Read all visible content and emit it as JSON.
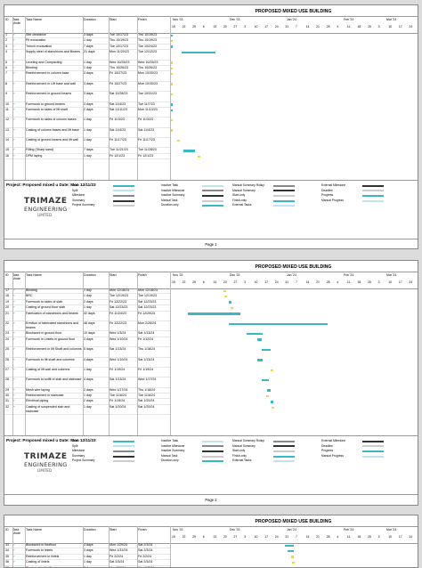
{
  "title": "PROPOSED MIXED USE BUILDING",
  "headers": {
    "id": "ID",
    "mode": "Task Mode",
    "name": "Task Name",
    "duration": "Duration",
    "start": "Start",
    "finish": "Finish"
  },
  "timeline_months": [
    "Nov '23",
    "Dec '23",
    "Jan '24",
    "Feb '24",
    "Mar '24"
  ],
  "timeline_days": [
    "15",
    "22",
    "29",
    "6",
    "13",
    "20",
    "27",
    "3",
    "10",
    "17",
    "24",
    "31",
    "7",
    "14",
    "21",
    "28",
    "4",
    "11",
    "18",
    "25",
    "3",
    "10",
    "17",
    "24"
  ],
  "pages": [
    {
      "tasks": [
        {
          "id": "1",
          "name": "Site clearance",
          "duration": "3 days",
          "start": "Tue 10/17/23",
          "finish": "Thu 10/19/23",
          "tall": false
        },
        {
          "id": "2",
          "name": "Pit excavation",
          "duration": "1 day",
          "start": "Thu 10/19/23",
          "finish": "Thu 10/19/23",
          "tall": false
        },
        {
          "id": "3",
          "name": "Trench excavation",
          "duration": "7 days",
          "start": "Tue 10/17/23",
          "finish": "Tue 10/24/23",
          "tall": false
        },
        {
          "id": "4",
          "name": "Supply steel of stanchions and Beams",
          "duration": "21 days",
          "start": "Mon 11/20/23",
          "finish": "Tue 12/12/23",
          "tall": true
        },
        {
          "id": "5",
          "name": "Leveling and Compacting",
          "duration": "1 day",
          "start": "Wed 10/25/23",
          "finish": "Wed 10/25/23",
          "tall": false
        },
        {
          "id": "6",
          "name": "Blinding",
          "duration": "1 day",
          "start": "Thu 10/26/23",
          "finish": "Thu 10/26/23",
          "tall": false
        },
        {
          "id": "7",
          "name": "Reinforcement in column base",
          "duration": "3 days",
          "start": "Fri 10/27/23",
          "finish": "Mon 10/30/23",
          "tall": true
        },
        {
          "id": "8",
          "name": "Reinforcement in Lift base and wall",
          "duration": "3 days",
          "start": "Fri 10/27/23",
          "finish": "Mon 10/30/23",
          "tall": true
        },
        {
          "id": "9",
          "name": "Reinforcement in ground beams",
          "duration": "3 days",
          "start": "Sat 10/28/23",
          "finish": "Tue 10/31/23",
          "tall": true
        },
        {
          "id": "10",
          "name": "Formwork to ground beams",
          "duration": "3 days",
          "start": "Sat 11/4/23",
          "finish": "Tue 11/7/23",
          "tall": false
        },
        {
          "id": "11",
          "name": "Formwork to sides of lift shaft",
          "duration": "2 days",
          "start": "Sat 11/11/23",
          "finish": "Mon 11/13/23",
          "tall": true
        },
        {
          "id": "12",
          "name": "Formwork to sides of column bases",
          "duration": "1 day",
          "start": "Fri 11/3/23",
          "finish": "Fri 11/3/23",
          "tall": true
        },
        {
          "id": "13",
          "name": "Casting of column bases and lift base",
          "duration": "1 day",
          "start": "Sat 11/4/23",
          "finish": "Sat 11/4/23",
          "tall": true
        },
        {
          "id": "14",
          "name": "Casting of ground beams and lift wall",
          "duration": "1 day",
          "start": "Fri 11/17/23",
          "finish": "Fri 11/17/23",
          "tall": true
        },
        {
          "id": "15",
          "name": "Filling (Sharp sand)",
          "duration": "7 days",
          "start": "Tue 11/21/23",
          "finish": "Tue 11/28/23",
          "tall": false
        },
        {
          "id": "16",
          "name": "DPM laying",
          "duration": "1 day",
          "start": "Fri 12/1/23",
          "finish": "Fri 12/1/23",
          "tall": false
        }
      ],
      "page_label": "Page 1"
    },
    {
      "tasks": [
        {
          "id": "17",
          "name": "Blinding",
          "duration": "1 day",
          "start": "Mon 12/18/23",
          "finish": "Mon 12/18/23",
          "tall": false
        },
        {
          "id": "18",
          "name": "BRC",
          "duration": "1 day",
          "start": "Tue 12/19/23",
          "finish": "Tue 12/19/23",
          "tall": false
        },
        {
          "id": "19",
          "name": "Formwork to sides of slab",
          "duration": "2 days",
          "start": "Fri 12/22/23",
          "finish": "Sat 12/23/23",
          "tall": false
        },
        {
          "id": "20",
          "name": "Casting of ground floor slab",
          "duration": "1 day",
          "start": "Sat 12/23/23",
          "finish": "Sat 12/23/23",
          "tall": false
        },
        {
          "id": "21",
          "name": "Fabrication of stanchions and beams",
          "duration": "32 days",
          "start": "Fri 11/24/23",
          "finish": "Fri 12/29/23",
          "tall": true
        },
        {
          "id": "22",
          "name": "Erection of fabricated stanchions and beams",
          "duration": "48 days",
          "start": "Fri 12/22/23",
          "finish": "Mon 2/26/24",
          "tall": true
        },
        {
          "id": "23",
          "name": "Blockwork in ground floor",
          "duration": "10 days",
          "start": "Wed 1/3/24",
          "finish": "Sat 1/13/24",
          "tall": false
        },
        {
          "id": "24",
          "name": "Formwork in Lintels in ground floor",
          "duration": "3 days",
          "start": "Wed 1/10/24",
          "finish": "Fri 1/12/24",
          "tall": true
        },
        {
          "id": "25",
          "name": "Reinforcement in lift Shaft and columns",
          "duration": "5 days",
          "start": "Sat 1/13/24",
          "finish": "Thu 1/18/24",
          "tall": true
        },
        {
          "id": "26",
          "name": "Formwork to lift shaft and columns",
          "duration": "4 days",
          "start": "Wed 1/10/24",
          "finish": "Sat 1/13/24",
          "tall": true
        },
        {
          "id": "27",
          "name": "Casting of lift wall and columns",
          "duration": "1 day",
          "start": "Fri 1/19/24",
          "finish": "Fri 1/19/24",
          "tall": true
        },
        {
          "id": "28",
          "name": "Formwork to soffit of slab and staircase",
          "duration": "4 days",
          "start": "Sat 1/13/24",
          "finish": "Wed 1/17/24",
          "tall": true
        },
        {
          "id": "29",
          "name": "Mesh wire laying",
          "duration": "2 days",
          "start": "Wed 1/17/24",
          "finish": "Thu 1/18/24",
          "tall": false
        },
        {
          "id": "30",
          "name": "Reinforcement in staircase",
          "duration": "1 day",
          "start": "Tue 1/16/24",
          "finish": "Tue 1/16/24",
          "tall": false
        },
        {
          "id": "31",
          "name": "Electrical piping",
          "duration": "2 days",
          "start": "Fri 1/19/24",
          "finish": "Sat 1/20/24",
          "tall": false
        },
        {
          "id": "32",
          "name": "Casting of suspended slab and staircase",
          "duration": "1 day",
          "start": "Sat 1/20/24",
          "finish": "Sat 1/20/24",
          "tall": true
        }
      ],
      "page_label": "Page 2"
    },
    {
      "tasks": [
        {
          "id": "33",
          "name": "Blockwork in firstfloor",
          "duration": "3 days",
          "start": "Mon 1/29/24",
          "finish": "Sat 2/3/24",
          "tall": false
        },
        {
          "id": "34",
          "name": "Formwork to lintels",
          "duration": "3 days",
          "start": "Wed 1/31/24",
          "finish": "Sat 2/3/24",
          "tall": false
        },
        {
          "id": "35",
          "name": "Reinforcement in lintels",
          "duration": "1 day",
          "start": "Fri 2/2/24",
          "finish": "Fri 2/2/24",
          "tall": false
        },
        {
          "id": "36",
          "name": "Casting of lintels",
          "duration": "1 day",
          "start": "Sat 2/3/24",
          "finish": "Sat 2/3/24",
          "tall": false
        },
        {
          "id": "37",
          "name": "Blockwork in firstfloor",
          "duration": "3 days",
          "start": "Mon 2/5/24",
          "finish": "Wed 2/7/24",
          "tall": false
        }
      ],
      "page_label": ""
    }
  ],
  "project_label": "Project: Proposed mixed u Date: Mon 12/11/23",
  "logo": {
    "line1": "TRIMAZE",
    "line2": "ENGINEERING",
    "line3": "LIMITED"
  },
  "legend": {
    "col1": [
      "Task",
      "Split",
      "Milestone",
      "Summary",
      "Project Summary"
    ],
    "col2": [
      "Inactive Task",
      "Inactive Milestone",
      "Inactive Summary",
      "Manual Task",
      "Duration-only"
    ],
    "col3": [
      "Manual Summary Rollup",
      "Manual Summary",
      "Start-only",
      "Finish-only",
      "External Tasks"
    ],
    "col4": [
      "External Milestone",
      "Deadline",
      "Progress",
      "Manual Progress"
    ]
  },
  "colors": {
    "task": "#3eb7c4",
    "critical": "#e9d84a",
    "border": "#999999"
  }
}
